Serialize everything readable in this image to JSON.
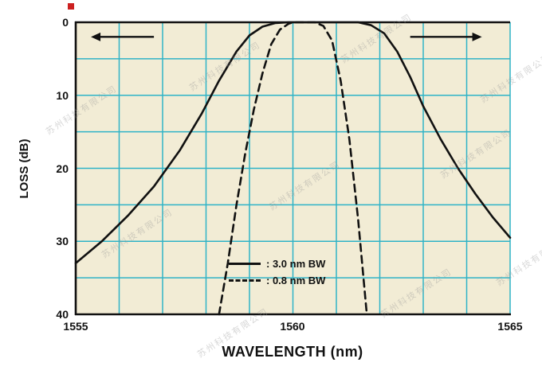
{
  "chart_data": {
    "type": "line",
    "title": "",
    "xlabel": "WAVELENGTH (nm)",
    "ylabel": "LOSS (dB)",
    "xlim": [
      1555,
      1565
    ],
    "ylim": [
      0,
      40
    ],
    "y_axis_inverted_loss": true,
    "grid": true,
    "x_tick_step": 1,
    "y_tick_step": 5,
    "xtick_values": [
      1555,
      1560,
      1565
    ],
    "xtick_labels": [
      "1555",
      "1560",
      "1565"
    ],
    "ytick_values": [
      0,
      10,
      20,
      30,
      40
    ],
    "ytick_labels": [
      "0",
      "10",
      "20",
      "30",
      "40"
    ],
    "colors": {
      "plot_bg": "#f2ecd5",
      "grid": "#2fb3c7",
      "curve": "#111111",
      "axis": "#111111"
    },
    "series": [
      {
        "name": "3.0 nm BW",
        "style": "solid",
        "points": [
          [
            1555.0,
            33.0
          ],
          [
            1555.6,
            30.0
          ],
          [
            1556.2,
            26.5
          ],
          [
            1556.8,
            22.5
          ],
          [
            1557.4,
            17.5
          ],
          [
            1557.9,
            12.5
          ],
          [
            1558.3,
            8.0
          ],
          [
            1558.7,
            4.0
          ],
          [
            1559.0,
            1.8
          ],
          [
            1559.3,
            0.6
          ],
          [
            1559.6,
            0.1
          ],
          [
            1559.9,
            0.0
          ],
          [
            1561.5,
            0.0
          ],
          [
            1561.8,
            0.4
          ],
          [
            1562.1,
            1.5
          ],
          [
            1562.4,
            4.0
          ],
          [
            1562.7,
            7.5
          ],
          [
            1563.0,
            11.5
          ],
          [
            1563.4,
            16.0
          ],
          [
            1563.8,
            20.0
          ],
          [
            1564.2,
            23.5
          ],
          [
            1564.6,
            26.7
          ],
          [
            1565.0,
            29.5
          ]
        ]
      },
      {
        "name": "0.8 nm BW",
        "style": "dashed",
        "points": [
          [
            1558.3,
            40.0
          ],
          [
            1558.5,
            33.0
          ],
          [
            1558.7,
            25.0
          ],
          [
            1558.9,
            18.0
          ],
          [
            1559.1,
            12.0
          ],
          [
            1559.3,
            7.0
          ],
          [
            1559.5,
            3.0
          ],
          [
            1559.7,
            1.0
          ],
          [
            1559.9,
            0.2
          ],
          [
            1560.0,
            0.0
          ],
          [
            1560.5,
            0.0
          ],
          [
            1560.7,
            0.5
          ],
          [
            1560.9,
            2.5
          ],
          [
            1561.1,
            8.0
          ],
          [
            1561.3,
            16.0
          ],
          [
            1561.5,
            27.0
          ],
          [
            1561.7,
            40.0
          ]
        ]
      }
    ],
    "annotations": [
      {
        "type": "arrow",
        "direction": "left",
        "x_from": 1556.8,
        "x_to": 1555.35,
        "loss": 2
      },
      {
        "type": "arrow",
        "direction": "right",
        "x_from": 1562.7,
        "x_to": 1564.35,
        "loss": 2
      }
    ],
    "legend_position": "bottom-center"
  },
  "legend": {
    "items": [
      {
        "label": ": 3.0 nm BW",
        "style": "solid"
      },
      {
        "label": ": 0.8 nm BW",
        "style": "dashed"
      }
    ]
  },
  "watermark": {
    "text": "苏州科技有限公司"
  }
}
